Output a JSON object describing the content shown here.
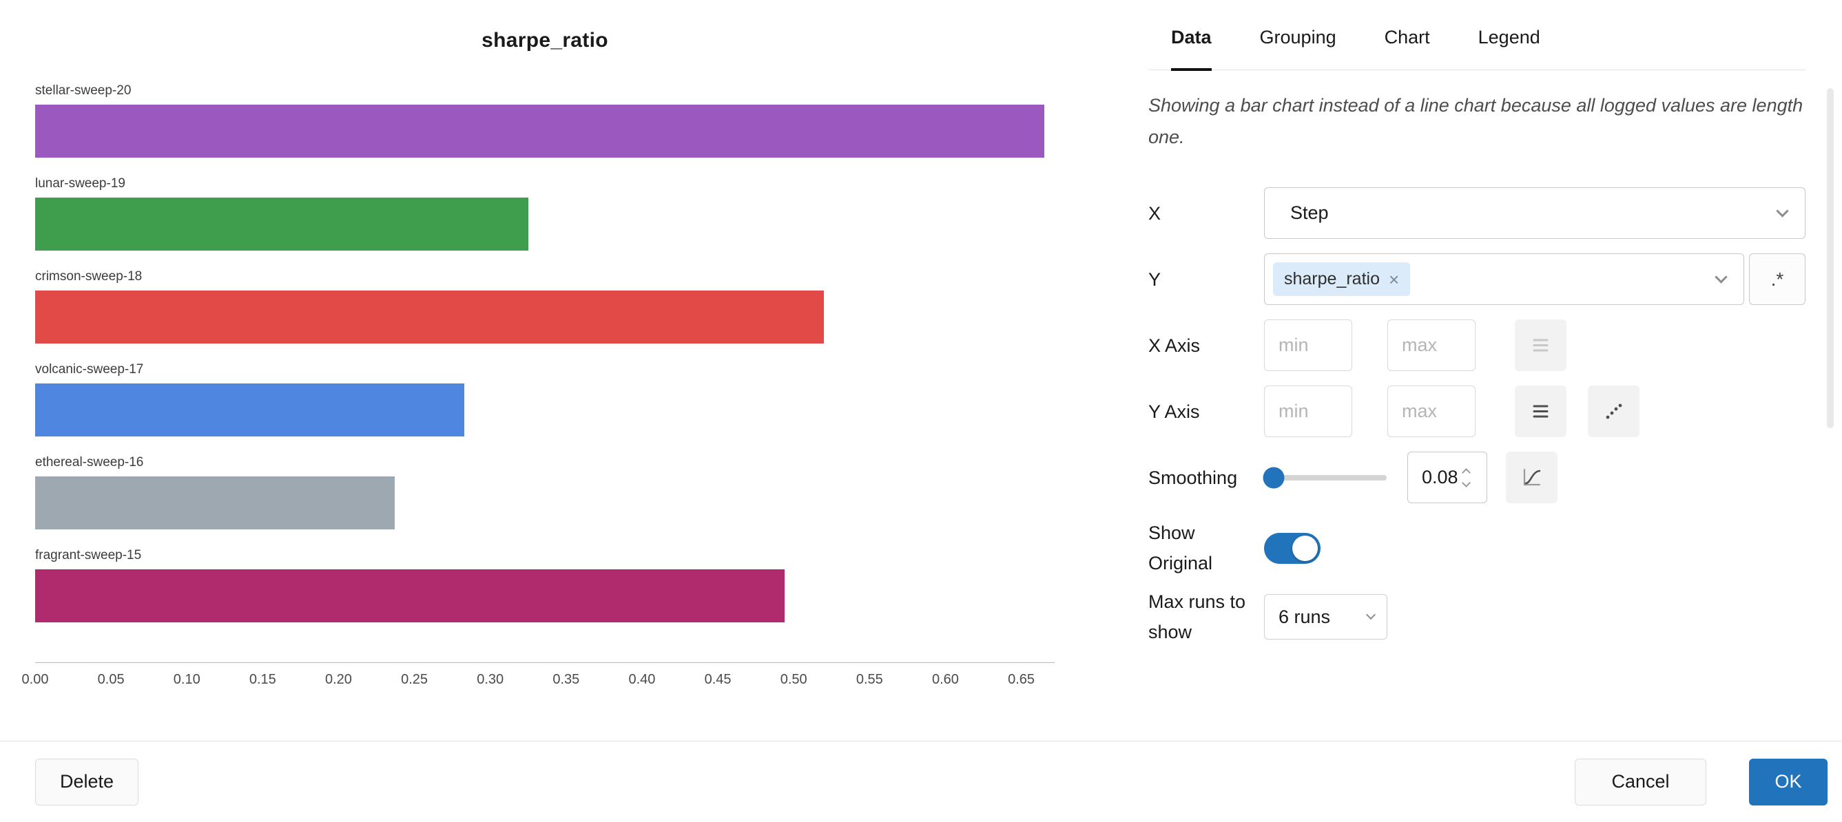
{
  "colors": {
    "accent": "#2173bb",
    "tag_background": "#dcebfa"
  },
  "chart": {
    "title": "sharpe_ratio",
    "chart_data": {
      "type": "bar",
      "orientation": "horizontal",
      "title": "sharpe_ratio",
      "categories": [
        "stellar-sweep-20",
        "lunar-sweep-19",
        "crimson-sweep-18",
        "volcanic-sweep-17",
        "ethereal-sweep-16",
        "fragrant-sweep-15"
      ],
      "values": [
        0.665,
        0.325,
        0.52,
        0.283,
        0.237,
        0.494
      ],
      "colors": [
        "#9b59c0",
        "#3e9e4e",
        "#e24a48",
        "#4f86e0",
        "#9ea8b0",
        "#b02a6e"
      ],
      "xlim": [
        0,
        0.672
      ],
      "xticks": [
        0,
        0.05,
        0.1,
        0.15,
        0.2,
        0.25,
        0.3,
        0.35,
        0.4,
        0.45,
        0.5,
        0.55,
        0.6,
        0.65
      ],
      "grid": false,
      "legend": false
    }
  },
  "panel": {
    "tabs": [
      {
        "label": "Data",
        "active": true
      },
      {
        "label": "Grouping",
        "active": false
      },
      {
        "label": "Chart",
        "active": false
      },
      {
        "label": "Legend",
        "active": false
      }
    ],
    "note": "Showing a bar chart instead of a line chart because all logged values are length one.",
    "fields": {
      "x": {
        "label": "X",
        "value": "Step"
      },
      "y": {
        "label": "Y",
        "selected_tag": "sharpe_ratio",
        "remove_symbol": "×",
        "regex_button_label": ".*"
      },
      "x_axis": {
        "label": "X Axis",
        "min_placeholder": "min",
        "max_placeholder": "max"
      },
      "y_axis": {
        "label": "Y Axis",
        "min_placeholder": "min",
        "max_placeholder": "max"
      },
      "smoothing": {
        "label": "Smoothing",
        "value": "0.08"
      },
      "show_original": {
        "label": "Show Original",
        "enabled": true
      },
      "max_runs": {
        "label": "Max runs to show",
        "value": "6 runs"
      }
    }
  },
  "footer": {
    "delete_label": "Delete",
    "cancel_label": "Cancel",
    "ok_label": "OK"
  }
}
